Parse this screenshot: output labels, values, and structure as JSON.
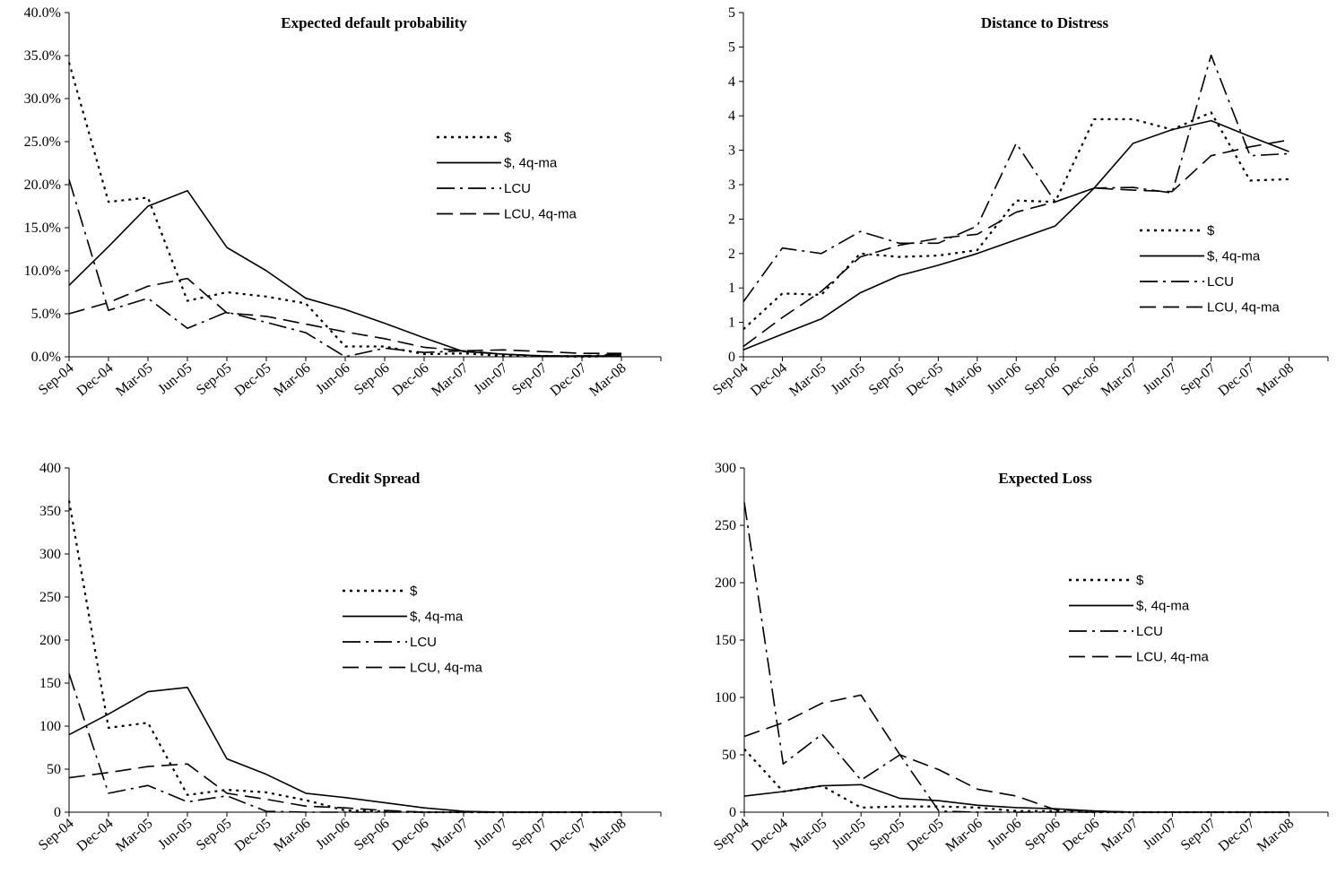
{
  "chart_data": [
    {
      "type": "line",
      "title": "Expected default probability",
      "x": [
        "Sep-04",
        "Dec-04",
        "Mar-05",
        "Jun-05",
        "Sep-05",
        "Dec-05",
        "Mar-06",
        "Jun-06",
        "Sep-06",
        "Dec-06",
        "Mar-07",
        "Jun-07",
        "Sep-07",
        "Dec-07",
        "Mar-08"
      ],
      "ylim": [
        0,
        40
      ],
      "y_ticks": [
        "0.0%",
        "5.0%",
        "10.0%",
        "15.0%",
        "20.0%",
        "25.0%",
        "30.0%",
        "35.0%",
        "40.0%"
      ],
      "series": [
        {
          "name": "$",
          "style": "dotted",
          "values": [
            34.2,
            18.0,
            18.5,
            6.5,
            7.5,
            7.0,
            6.2,
            1.2,
            1.2,
            0.3,
            0.4,
            0.1,
            0.1,
            0.0,
            0.1
          ]
        },
        {
          "name": "$, 4q-ma",
          "style": "solid",
          "values": [
            8.3,
            12.8,
            17.5,
            19.3,
            12.7,
            10.0,
            6.8,
            5.5,
            3.9,
            2.2,
            0.6,
            0.3,
            0.1,
            0.1,
            0.1
          ]
        },
        {
          "name": "LCU",
          "style": "dashdot",
          "values": [
            20.6,
            5.4,
            6.8,
            3.3,
            5.2,
            4.0,
            2.8,
            0.0,
            1.0,
            0.5,
            0.7,
            0.3,
            0.1,
            0.1,
            0.3
          ]
        },
        {
          "name": "LCU, 4q-ma",
          "style": "dashed",
          "values": [
            5.0,
            6.3,
            8.2,
            9.1,
            5.1,
            4.7,
            3.8,
            2.9,
            2.1,
            1.1,
            0.7,
            0.8,
            0.6,
            0.4,
            0.4
          ]
        }
      ]
    },
    {
      "type": "line",
      "title": "Distance to Distress",
      "x": [
        "Sep-04",
        "Dec-04",
        "Mar-05",
        "Jun-05",
        "Sep-05",
        "Dec-05",
        "Mar-06",
        "Jun-06",
        "Sep-06",
        "Dec-06",
        "Mar-07",
        "Jun-07",
        "Sep-07",
        "Dec-07",
        "Mar-08"
      ],
      "ylim": [
        0,
        5
      ],
      "y_ticks": [
        "0",
        "1",
        "1",
        "2",
        "2",
        "3",
        "3",
        "4",
        "4",
        "5",
        "5"
      ],
      "series": [
        {
          "name": "$",
          "style": "dotted",
          "values": [
            0.4,
            0.92,
            0.9,
            1.5,
            1.45,
            1.47,
            1.55,
            2.27,
            2.25,
            3.45,
            3.45,
            3.3,
            3.55,
            2.56,
            2.58
          ]
        },
        {
          "name": "$, 4q-ma",
          "style": "solid",
          "values": [
            0.1,
            0.33,
            0.55,
            0.93,
            1.18,
            1.33,
            1.5,
            1.7,
            1.9,
            2.45,
            3.1,
            3.3,
            3.43,
            3.2,
            2.98
          ]
        },
        {
          "name": "LCU",
          "style": "dashdot",
          "values": [
            0.8,
            1.58,
            1.5,
            1.82,
            1.65,
            1.65,
            1.9,
            3.1,
            2.25,
            2.45,
            2.46,
            2.38,
            4.38,
            2.92,
            2.95
          ]
        },
        {
          "name": "LCU, 4q-ma",
          "style": "dashed",
          "values": [
            0.15,
            0.57,
            0.95,
            1.45,
            1.62,
            1.72,
            1.78,
            2.1,
            2.25,
            2.45,
            2.42,
            2.4,
            2.92,
            3.05,
            3.15
          ]
        }
      ]
    },
    {
      "type": "line",
      "title": "Credit Spread",
      "x": [
        "Sep-04",
        "Dec-04",
        "Mar-05",
        "Jun-05",
        "Sep-05",
        "Dec-05",
        "Mar-06",
        "Jun-06",
        "Sep-06",
        "Dec-06",
        "Mar-07",
        "Jun-07",
        "Sep-07",
        "Dec-07",
        "Mar-08"
      ],
      "ylim": [
        0,
        400
      ],
      "y_ticks": [
        "0",
        "50",
        "100",
        "150",
        "200",
        "250",
        "300",
        "350",
        "400"
      ],
      "series": [
        {
          "name": "$",
          "style": "dotted",
          "values": [
            362,
            98,
            104,
            20,
            26,
            23,
            14,
            2,
            1,
            0,
            0,
            0,
            0,
            0,
            0
          ]
        },
        {
          "name": "$, 4q-ma",
          "style": "solid",
          "values": [
            90,
            114,
            140,
            145,
            62,
            44,
            22,
            17,
            11,
            5,
            1,
            0,
            0,
            0,
            0
          ]
        },
        {
          "name": "LCU",
          "style": "dashdot",
          "values": [
            161,
            22,
            31,
            12,
            19,
            1,
            0,
            0,
            0,
            0,
            0,
            0,
            0,
            0,
            0
          ]
        },
        {
          "name": "LCU, 4q-ma",
          "style": "dashed",
          "values": [
            40,
            46,
            53,
            56,
            22,
            15,
            7,
            5,
            2,
            0,
            0,
            0,
            0,
            0,
            0
          ]
        }
      ]
    },
    {
      "type": "line",
      "title": "Expected Loss",
      "x": [
        "Sep-04",
        "Dec-04",
        "Mar-05",
        "Jun-05",
        "Sep-05",
        "Dec-05",
        "Mar-06",
        "Jun-06",
        "Sep-06",
        "Dec-06",
        "Mar-07",
        "Jun-07",
        "Sep-07",
        "Dec-07",
        "Mar-08"
      ],
      "ylim": [
        0,
        300
      ],
      "y_ticks": [
        "0",
        "50",
        "100",
        "150",
        "200",
        "250",
        "300"
      ],
      "series": [
        {
          "name": "$",
          "style": "dotted",
          "values": [
            55,
            18,
            23,
            4,
            5,
            5,
            4,
            1,
            1,
            0,
            0,
            0,
            0,
            0,
            0
          ]
        },
        {
          "name": "$, 4q-ma",
          "style": "solid",
          "values": [
            14,
            18,
            23,
            24,
            12,
            10,
            6,
            4,
            3,
            1,
            0,
            0,
            0,
            0,
            0
          ]
        },
        {
          "name": "LCU",
          "style": "dashdot",
          "values": [
            270,
            42,
            68,
            28,
            50,
            1,
            0,
            0,
            0,
            0,
            0,
            0,
            0,
            0,
            0
          ]
        },
        {
          "name": "LCU, 4q-ma",
          "style": "dashed",
          "values": [
            66,
            78,
            95,
            102,
            50,
            37,
            20,
            14,
            2,
            1,
            0,
            0,
            0,
            0,
            0
          ]
        }
      ]
    }
  ]
}
